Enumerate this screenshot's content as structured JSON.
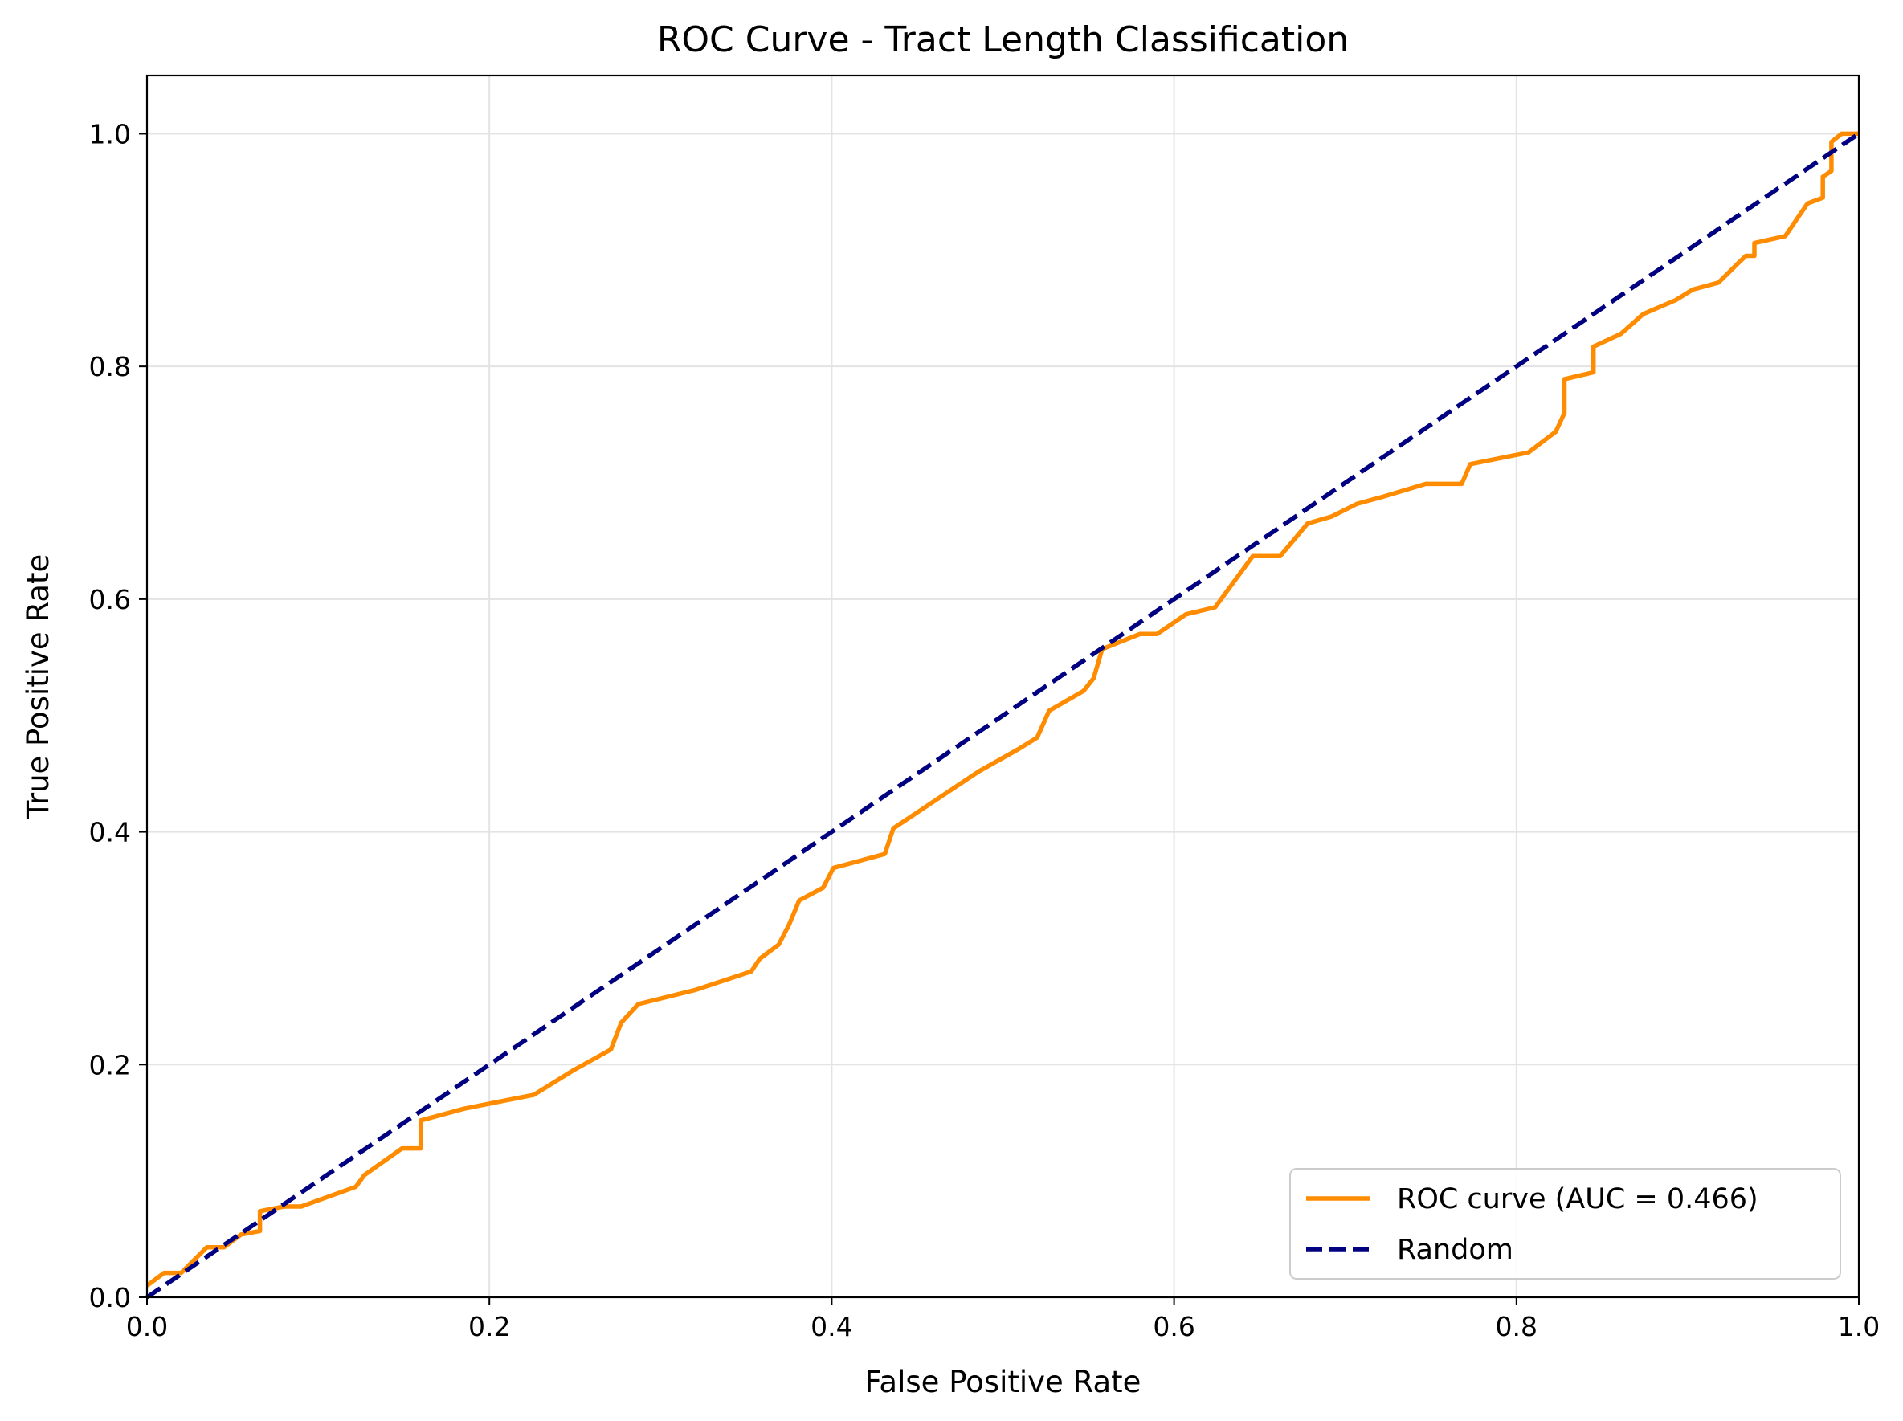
{
  "chart_data": {
    "type": "line",
    "title": "ROC Curve - Tract Length Classification",
    "xlabel": "False Positive Rate",
    "ylabel": "True Positive Rate",
    "xlim": [
      0.0,
      1.0
    ],
    "ylim": [
      0.0,
      1.05
    ],
    "xticks": [
      0.0,
      0.2,
      0.4,
      0.6,
      0.8,
      1.0
    ],
    "xtick_labels": [
      "0.0",
      "0.2",
      "0.4",
      "0.6",
      "0.8",
      "1.0"
    ],
    "yticks": [
      0.0,
      0.2,
      0.4,
      0.6,
      0.8,
      1.0
    ],
    "ytick_labels": [
      "0.0",
      "0.2",
      "0.4",
      "0.6",
      "0.8",
      "1.0"
    ],
    "grid": true,
    "legend_position": "bottom-right",
    "series": [
      {
        "name": "ROC curve (AUC = 0.466)",
        "color": "#ff8c00",
        "style": "solid",
        "points": [
          [
            0.0,
            0.01
          ],
          [
            0.01,
            0.021
          ],
          [
            0.02,
            0.021
          ],
          [
            0.035,
            0.043
          ],
          [
            0.045,
            0.043
          ],
          [
            0.055,
            0.054
          ],
          [
            0.066,
            0.057
          ],
          [
            0.066,
            0.074
          ],
          [
            0.08,
            0.078
          ],
          [
            0.09,
            0.078
          ],
          [
            0.122,
            0.095
          ],
          [
            0.127,
            0.105
          ],
          [
            0.149,
            0.128
          ],
          [
            0.16,
            0.128
          ],
          [
            0.16,
            0.152
          ],
          [
            0.185,
            0.162
          ],
          [
            0.226,
            0.174
          ],
          [
            0.249,
            0.195
          ],
          [
            0.271,
            0.213
          ],
          [
            0.277,
            0.236
          ],
          [
            0.287,
            0.252
          ],
          [
            0.32,
            0.264
          ],
          [
            0.353,
            0.28
          ],
          [
            0.358,
            0.291
          ],
          [
            0.369,
            0.303
          ],
          [
            0.375,
            0.32
          ],
          [
            0.381,
            0.341
          ],
          [
            0.395,
            0.352
          ],
          [
            0.401,
            0.369
          ],
          [
            0.431,
            0.381
          ],
          [
            0.436,
            0.403
          ],
          [
            0.486,
            0.452
          ],
          [
            0.509,
            0.471
          ],
          [
            0.52,
            0.481
          ],
          [
            0.527,
            0.504
          ],
          [
            0.547,
            0.521
          ],
          [
            0.553,
            0.532
          ],
          [
            0.558,
            0.557
          ],
          [
            0.58,
            0.57
          ],
          [
            0.59,
            0.57
          ],
          [
            0.607,
            0.587
          ],
          [
            0.624,
            0.593
          ],
          [
            0.646,
            0.637
          ],
          [
            0.662,
            0.637
          ],
          [
            0.674,
            0.658
          ],
          [
            0.678,
            0.665
          ],
          [
            0.692,
            0.671
          ],
          [
            0.707,
            0.682
          ],
          [
            0.722,
            0.688
          ],
          [
            0.747,
            0.699
          ],
          [
            0.768,
            0.699
          ],
          [
            0.773,
            0.716
          ],
          [
            0.807,
            0.726
          ],
          [
            0.823,
            0.744
          ],
          [
            0.828,
            0.76
          ],
          [
            0.828,
            0.789
          ],
          [
            0.845,
            0.795
          ],
          [
            0.845,
            0.817
          ],
          [
            0.861,
            0.828
          ],
          [
            0.868,
            0.837
          ],
          [
            0.874,
            0.845
          ],
          [
            0.893,
            0.857
          ],
          [
            0.903,
            0.866
          ],
          [
            0.918,
            0.872
          ],
          [
            0.929,
            0.888
          ],
          [
            0.934,
            0.895
          ],
          [
            0.939,
            0.895
          ],
          [
            0.939,
            0.906
          ],
          [
            0.957,
            0.912
          ],
          [
            0.97,
            0.94
          ],
          [
            0.979,
            0.945
          ],
          [
            0.979,
            0.963
          ],
          [
            0.984,
            0.968
          ],
          [
            0.984,
            0.993
          ],
          [
            0.99,
            1.0
          ],
          [
            1.0,
            1.0
          ]
        ]
      },
      {
        "name": "Random",
        "color": "#000080",
        "style": "dashed",
        "points": [
          [
            0.0,
            0.0
          ],
          [
            1.0,
            1.0
          ]
        ]
      }
    ]
  }
}
